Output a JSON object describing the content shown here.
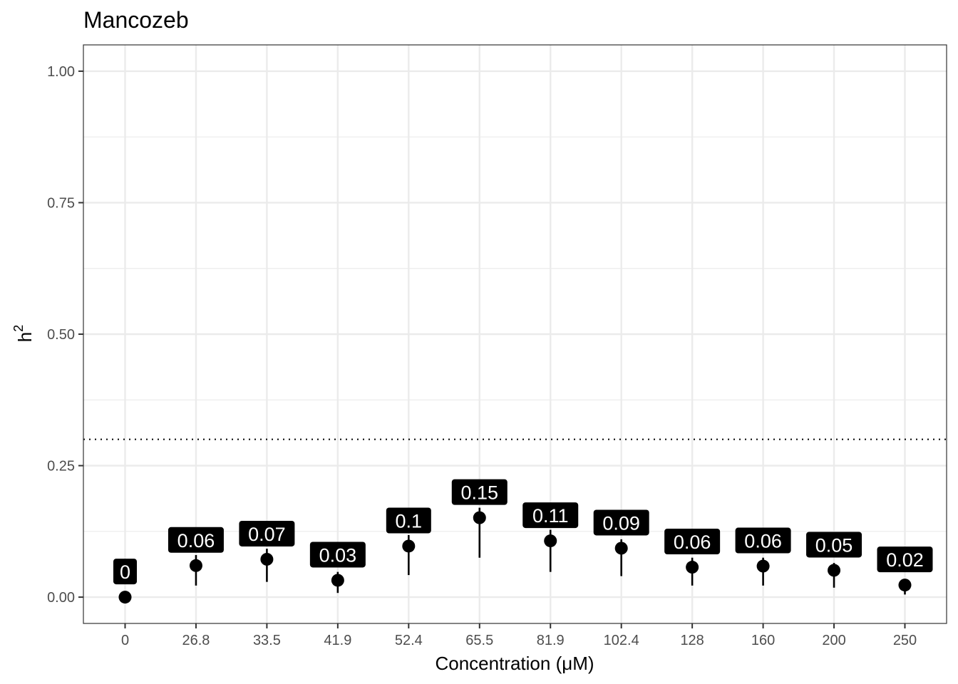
{
  "chart_data": {
    "type": "scatter",
    "title": "Mancozeb",
    "xlabel": "Concentration (μM)",
    "ylabel": "h",
    "ylabel_superscript": "2",
    "categories": [
      "0",
      "26.8",
      "33.5",
      "41.9",
      "52.4",
      "65.5",
      "81.9",
      "102.4",
      "128",
      "160",
      "200",
      "250"
    ],
    "values": [
      0.0,
      0.06,
      0.072,
      0.032,
      0.097,
      0.151,
      0.107,
      0.093,
      0.057,
      0.059,
      0.051,
      0.023
    ],
    "error_low": [
      0.0,
      0.022,
      0.029,
      0.008,
      0.042,
      0.075,
      0.048,
      0.04,
      0.022,
      0.022,
      0.018,
      0.005
    ],
    "error_high": [
      0.0,
      0.08,
      0.092,
      0.048,
      0.118,
      0.17,
      0.128,
      0.11,
      0.075,
      0.075,
      0.065,
      0.034
    ],
    "data_labels": [
      "0",
      "0.06",
      "0.07",
      "0.03",
      "0.1",
      "0.15",
      "0.11",
      "0.09",
      "0.06",
      "0.06",
      "0.05",
      "0.02"
    ],
    "reference_line": 0.3,
    "ylim": [
      -0.05,
      1.05
    ],
    "yticks": [
      0.0,
      0.25,
      0.5,
      0.75,
      1.0
    ],
    "ytick_labels": [
      "0.00",
      "0.25",
      "0.50",
      "0.75",
      "1.00"
    ],
    "grid": true,
    "colors": {
      "point": "#000000",
      "label_bg": "#000000",
      "label_text": "#ffffff",
      "grid": "#ebebeb",
      "panel_border": "#333333"
    }
  }
}
